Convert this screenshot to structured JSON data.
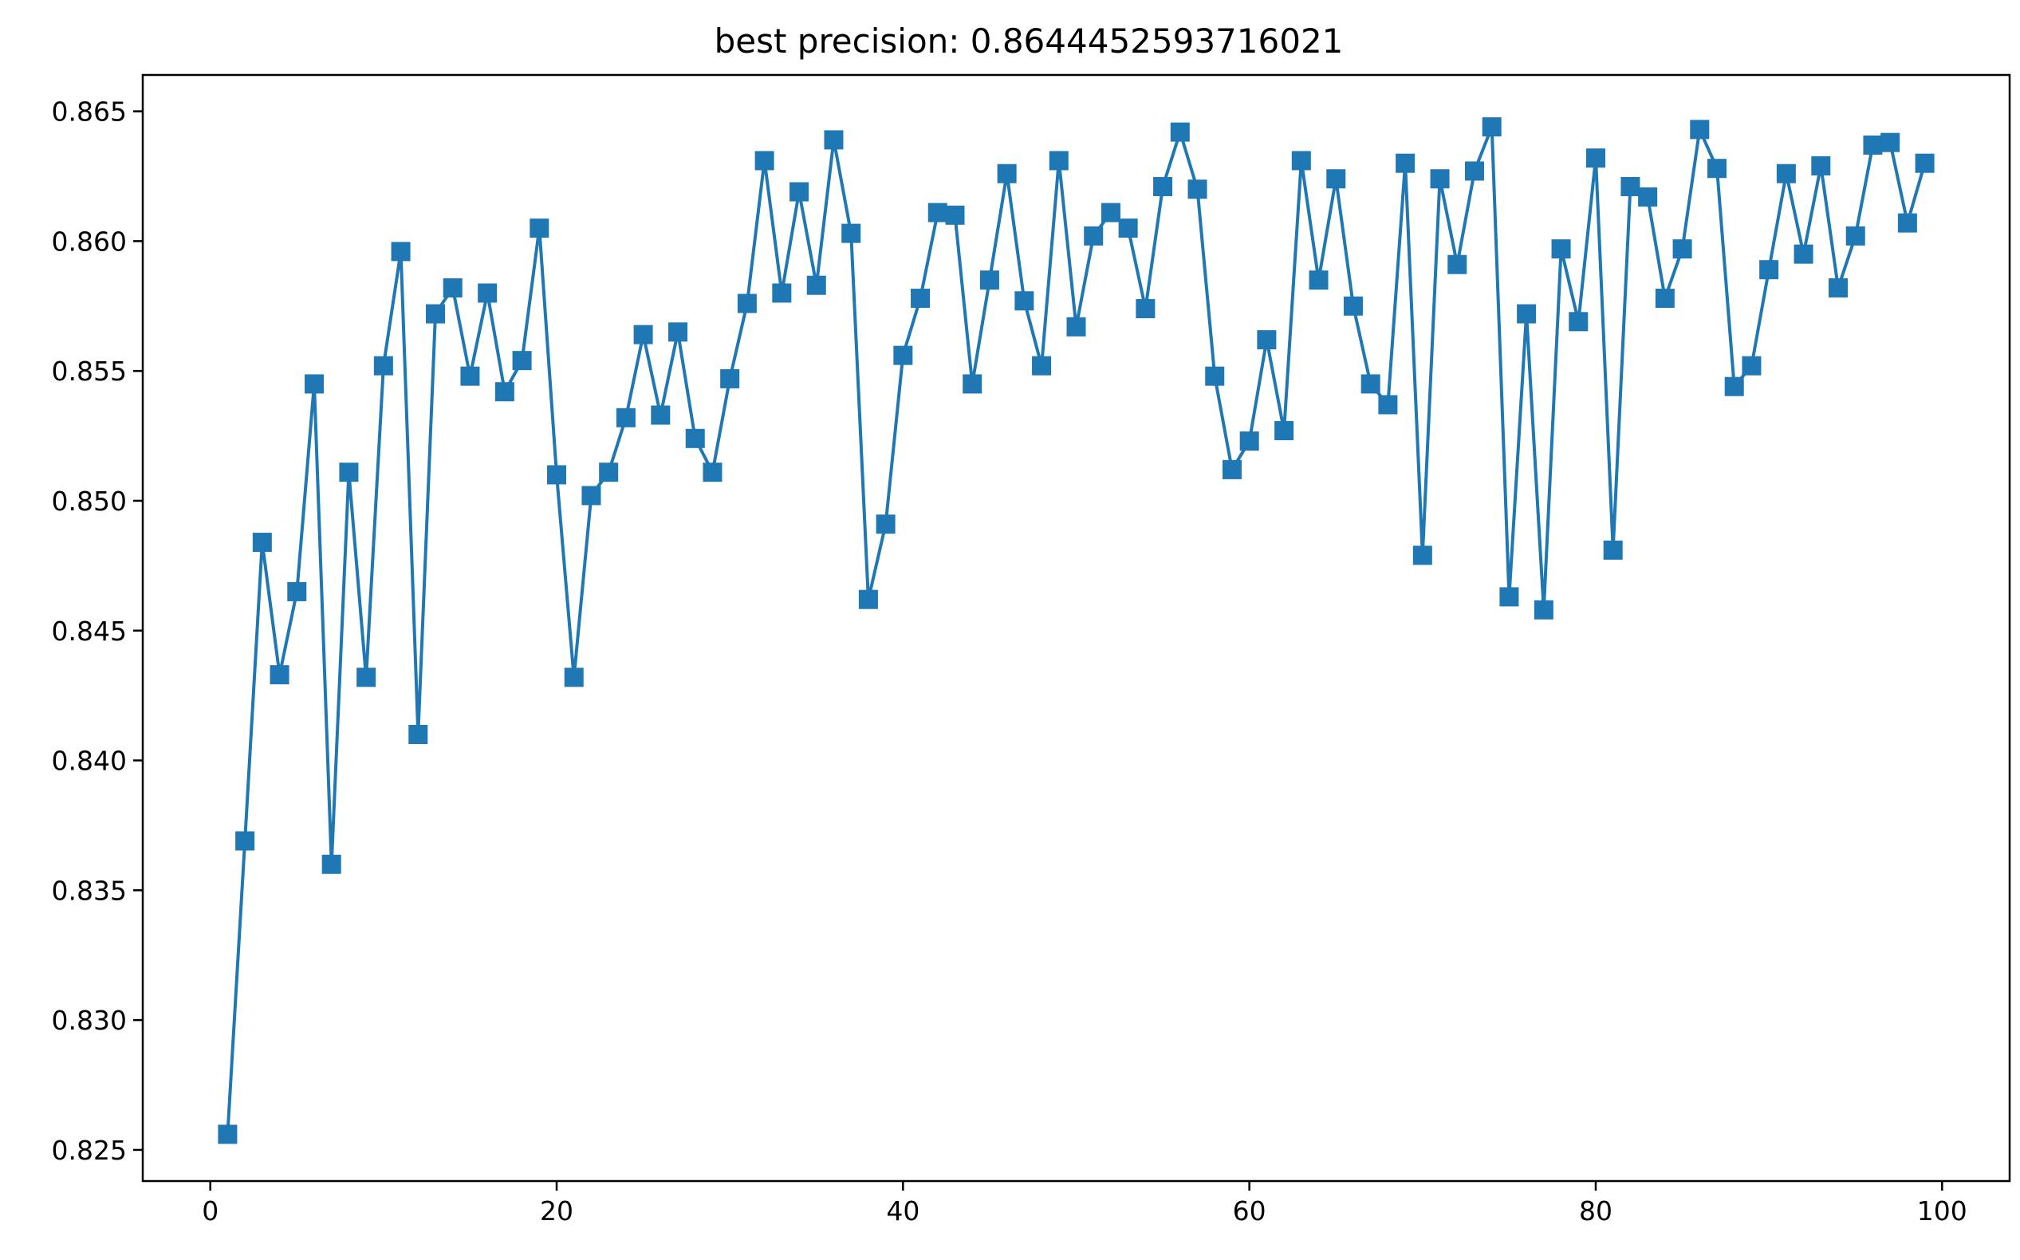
{
  "chart_data": {
    "type": "line",
    "title": "best precision: 0.8644452593716021",
    "xlabel": "",
    "ylabel": "",
    "xlim": [
      -3.9,
      103.9
    ],
    "ylim": [
      0.8238,
      0.8664
    ],
    "xticks": [
      0,
      20,
      40,
      60,
      80,
      100
    ],
    "xtick_labels": [
      "0",
      "20",
      "40",
      "60",
      "80",
      "100"
    ],
    "yticks": [
      0.825,
      0.83,
      0.835,
      0.84,
      0.845,
      0.85,
      0.855,
      0.86,
      0.865
    ],
    "ytick_labels": [
      "0.825",
      "0.830",
      "0.835",
      "0.840",
      "0.845",
      "0.850",
      "0.855",
      "0.860",
      "0.865"
    ],
    "grid": false,
    "colors": {
      "series": "#1f77b4"
    },
    "marker": "square",
    "series": [
      {
        "x": [
          1,
          2,
          3,
          4,
          5,
          6,
          7,
          8,
          9,
          10,
          11,
          12,
          13,
          14,
          15,
          16,
          17,
          18,
          19,
          20,
          21,
          22,
          23,
          24,
          25,
          26,
          27,
          28,
          29,
          30,
          31,
          32,
          33,
          34,
          35,
          36,
          37,
          38,
          39,
          40,
          41,
          42,
          43,
          44,
          45,
          46,
          47,
          48,
          49,
          50,
          51,
          52,
          53,
          54,
          55,
          56,
          57,
          58,
          59,
          60,
          61,
          62,
          63,
          64,
          65,
          66,
          67,
          68,
          69,
          70,
          71,
          72,
          73,
          74,
          75,
          76,
          77,
          78,
          79,
          80,
          81,
          82,
          83,
          84,
          85,
          86,
          87,
          88,
          89,
          90,
          91,
          92,
          93,
          94,
          95,
          96,
          97,
          98,
          99
        ],
        "values": [
          0.8256,
          0.8369,
          0.8484,
          0.8433,
          0.8465,
          0.8545,
          0.836,
          0.8511,
          0.8432,
          0.8552,
          0.8596,
          0.841,
          0.8572,
          0.8582,
          0.8548,
          0.858,
          0.8542,
          0.8554,
          0.8605,
          0.851,
          0.8432,
          0.8502,
          0.8511,
          0.8532,
          0.8564,
          0.8533,
          0.8565,
          0.8524,
          0.8511,
          0.8547,
          0.8576,
          0.8631,
          0.858,
          0.8619,
          0.8583,
          0.8639,
          0.8603,
          0.8462,
          0.8491,
          0.8556,
          0.8578,
          0.8611,
          0.861,
          0.8545,
          0.8585,
          0.8626,
          0.8577,
          0.8552,
          0.8631,
          0.8567,
          0.8602,
          0.8611,
          0.8605,
          0.8574,
          0.8621,
          0.8642,
          0.862,
          0.8548,
          0.8512,
          0.8523,
          0.8562,
          0.8527,
          0.8631,
          0.8585,
          0.8624,
          0.8575,
          0.8545,
          0.8537,
          0.863,
          0.8479,
          0.8624,
          0.8591,
          0.8627,
          0.8644,
          0.8463,
          0.8572,
          0.8458,
          0.8597,
          0.8569,
          0.8632,
          0.8481,
          0.8621,
          0.8617,
          0.8578,
          0.8597,
          0.8643,
          0.8628,
          0.8544,
          0.8552,
          0.8589,
          0.8626,
          0.8595,
          0.8629,
          0.8582,
          0.8602,
          0.8637,
          0.8638,
          0.8607,
          0.863
        ]
      }
    ]
  }
}
